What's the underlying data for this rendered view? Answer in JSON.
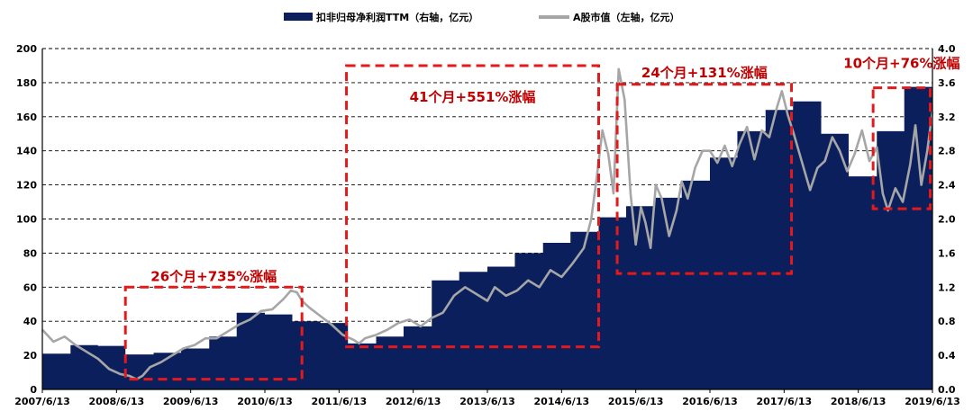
{
  "chart_data": {
    "type": "area+line",
    "x_tick_labels": [
      "2007/6/13",
      "2008/6/13",
      "2009/6/13",
      "2010/6/13",
      "2011/6/13",
      "2012/6/13",
      "2013/6/13",
      "2014/6/13",
      "2015/6/13",
      "2016/6/13",
      "2017/6/13",
      "2018/6/13",
      "2019/6/13"
    ],
    "x_range": [
      2007.45,
      2019.45
    ],
    "ylim_left": [
      0,
      200
    ],
    "ylim_right": [
      0,
      4.0
    ],
    "y_left_tick_labels": [
      "0",
      "20",
      "40",
      "60",
      "80",
      "100",
      "120",
      "140",
      "160",
      "180",
      "200"
    ],
    "y_right_tick_labels": [
      "0.0",
      "0.4",
      "0.8",
      "1.2",
      "1.6",
      "2.0",
      "2.4",
      "2.8",
      "3.2",
      "3.6",
      "4.0"
    ],
    "grid": "horizontal-dashed",
    "legend": "top-center",
    "series": [
      {
        "name": "扣非归母净利润TTM（右轴，亿元）",
        "axis": "right",
        "style": "step-area",
        "color": "#0b1f5c",
        "x": [
          2007.45,
          2007.83,
          2008.2,
          2008.57,
          2008.95,
          2009.32,
          2009.7,
          2010.07,
          2010.45,
          2010.82,
          2011.2,
          2011.57,
          2011.95,
          2012.32,
          2012.7,
          2013.07,
          2013.45,
          2013.82,
          2014.2,
          2014.57,
          2014.95,
          2015.32,
          2015.7,
          2016.07,
          2016.45,
          2016.82,
          2017.2,
          2017.57,
          2017.95,
          2018.32,
          2018.7,
          2019.07
        ],
        "values": [
          0.42,
          0.52,
          0.51,
          0.41,
          0.43,
          0.48,
          0.62,
          0.9,
          0.88,
          0.8,
          0.78,
          0.54,
          0.62,
          0.74,
          1.28,
          1.38,
          1.44,
          1.6,
          1.72,
          1.85,
          2.02,
          2.15,
          2.25,
          2.45,
          2.72,
          3.03,
          3.28,
          3.38,
          3.0,
          2.5,
          3.03,
          3.55
        ]
      },
      {
        "name": "A股市值（左轴，亿元）",
        "axis": "left",
        "style": "line",
        "color": "#a6a6a6",
        "x": [
          2007.45,
          2007.6,
          2007.75,
          2007.9,
          2008.05,
          2008.2,
          2008.35,
          2008.5,
          2008.62,
          2008.72,
          2008.8,
          2008.9,
          2009.05,
          2009.2,
          2009.35,
          2009.5,
          2009.65,
          2009.8,
          2009.95,
          2010.1,
          2010.25,
          2010.4,
          2010.55,
          2010.7,
          2010.8,
          2010.88,
          2010.95,
          2011.05,
          2011.2,
          2011.35,
          2011.5,
          2011.65,
          2011.72,
          2011.8,
          2011.95,
          2012.1,
          2012.25,
          2012.4,
          2012.55,
          2012.7,
          2012.85,
          2013.0,
          2013.15,
          2013.3,
          2013.45,
          2013.55,
          2013.7,
          2013.85,
          2014.0,
          2014.15,
          2014.3,
          2014.45,
          2014.6,
          2014.75,
          2014.85,
          2014.92,
          2015.0,
          2015.08,
          2015.15,
          2015.22,
          2015.3,
          2015.38,
          2015.45,
          2015.52,
          2015.58,
          2015.65,
          2015.72,
          2015.8,
          2015.9,
          2016.0,
          2016.07,
          2016.15,
          2016.25,
          2016.35,
          2016.45,
          2016.55,
          2016.65,
          2016.75,
          2016.85,
          2016.95,
          2017.05,
          2017.15,
          2017.25,
          2017.35,
          2017.42,
          2017.5,
          2017.58,
          2017.68,
          2017.8,
          2017.9,
          2018.0,
          2018.1,
          2018.2,
          2018.3,
          2018.4,
          2018.5,
          2018.6,
          2018.7,
          2018.78,
          2018.85,
          2018.95,
          2019.05,
          2019.15,
          2019.22,
          2019.3,
          2019.38,
          2019.45
        ],
        "values": [
          35,
          28,
          31,
          26,
          22,
          18,
          12,
          9,
          8,
          6,
          8,
          13,
          16,
          20,
          24,
          26,
          30,
          30,
          34,
          38,
          41,
          46,
          47,
          53,
          58,
          57,
          52,
          48,
          43,
          38,
          32,
          29,
          27,
          30,
          32,
          35,
          39,
          41,
          37,
          42,
          45,
          55,
          60,
          56,
          52,
          60,
          55,
          58,
          64,
          60,
          70,
          66,
          74,
          83,
          100,
          123,
          152,
          138,
          115,
          188,
          170,
          115,
          85,
          107,
          98,
          83,
          120,
          112,
          90,
          105,
          122,
          112,
          130,
          140,
          140,
          133,
          143,
          131,
          144,
          154,
          135,
          152,
          148,
          165,
          175,
          161,
          150,
          135,
          117,
          130,
          134,
          148,
          140,
          128,
          138,
          152,
          134,
          142,
          115,
          105,
          118,
          110,
          132,
          155,
          120,
          140,
          163
        ]
      }
    ],
    "annotations": [
      {
        "label": "26个月+735%涨幅",
        "x_start": 2008.57,
        "x_end": 2010.95,
        "y_top": 60,
        "y_bottom": 6
      },
      {
        "label": "41个月+551%涨幅",
        "x_start": 2011.55,
        "x_end": 2014.95,
        "y_top": 190,
        "y_bottom": 25
      },
      {
        "label": "24个月+131%涨幅",
        "x_start": 2015.2,
        "x_end": 2017.55,
        "y_top": 179,
        "y_bottom": 68
      },
      {
        "label": "10个月+76%涨幅",
        "x_start": 2018.65,
        "x_end": 2019.42,
        "y_top": 177,
        "y_bottom": 106
      }
    ]
  }
}
